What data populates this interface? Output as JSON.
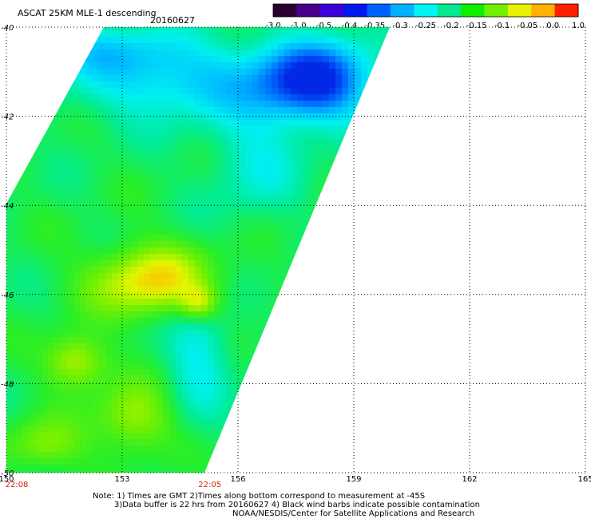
{
  "title": "ASCAT 25KM MLE-1 descending",
  "date": "20160627",
  "colorbar": {
    "tick_labels": [
      "-3.0",
      "-1.0",
      "-0.5",
      "-0.4",
      "-0.35",
      "-0.3",
      "-0.25",
      "-0.2",
      "-0.15",
      "-0.1",
      "-0.05",
      "0.0",
      "1.0"
    ],
    "colors": [
      "#2a0030",
      "#48008a",
      "#3a00d8",
      "#0018f0",
      "#0060ff",
      "#00b0ff",
      "#00f4f4",
      "#00e890",
      "#10ee00",
      "#70f000",
      "#e8f000",
      "#ffb000",
      "#ff2000"
    ]
  },
  "axes": {
    "lon_ticks": [
      "150",
      "153",
      "156",
      "159",
      "162",
      "165"
    ],
    "lat_ticks": [
      "-40",
      "-42",
      "-44",
      "-46",
      "-48",
      "-50"
    ],
    "lon_range": [
      150,
      165
    ],
    "lat_range": [
      -50,
      -40
    ],
    "grid": "dotted"
  },
  "time_labels": [
    {
      "lon": 150,
      "text": "22:08"
    },
    {
      "lon": 155,
      "text": "22:05"
    }
  ],
  "notes": [
    "Note: 1) Times are GMT 2)Times along bottom correspond to measurement at -45S",
    "3)Data buffer is 22 hrs from 20160627 4) Black wind barbs indicate possible contamination",
    "NOAA/NESDIS/Center for Satellite Applications and Research"
  ]
}
